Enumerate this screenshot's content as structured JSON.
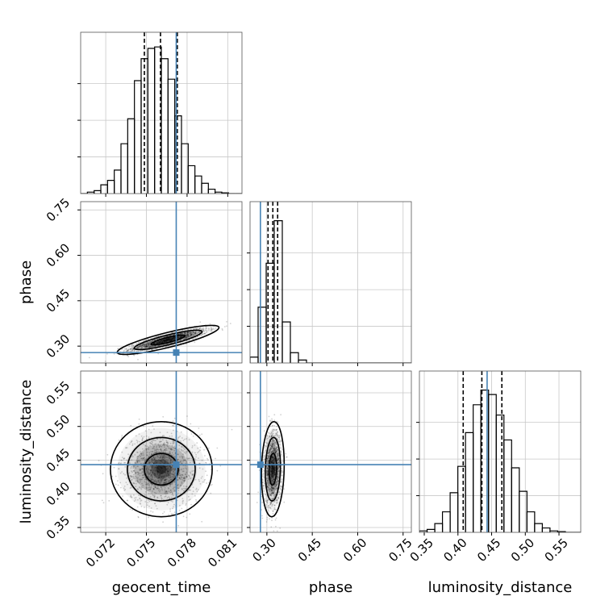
{
  "chart_data": {
    "type": "corner",
    "parameters": [
      "geocent_time",
      "phase",
      "luminosity_distance"
    ],
    "truth": {
      "geocent_time": 0.0772,
      "phase": 0.2787,
      "luminosity_distance": 0.4433
    },
    "truth_color": "#4682b4",
    "quantiles": {
      "geocent_time": [
        0.07485,
        0.07604,
        0.07728
      ],
      "phase": [
        0.3039,
        0.3197,
        0.3356
      ],
      "luminosity_distance": [
        0.4078,
        0.4355,
        0.4652
      ]
    },
    "ranges": {
      "geocent_time": [
        0.07015,
        0.08205
      ],
      "phase": [
        0.2444,
        0.7773
      ],
      "luminosity_distance": [
        0.3428,
        0.5823
      ]
    },
    "ticks": {
      "geocent_time": {
        "values": [
          0.072,
          0.075,
          0.078,
          0.081
        ],
        "labels": [
          "0.072",
          "0.075",
          "0.078",
          "0.081"
        ]
      },
      "phase": {
        "values": [
          0.3,
          0.45,
          0.6,
          0.75
        ],
        "labels": [
          "0.30",
          "0.45",
          "0.60",
          "0.75"
        ]
      },
      "luminosity_distance": {
        "values": [
          0.35,
          0.4,
          0.45,
          0.5,
          0.55
        ],
        "labels": [
          "0.35",
          "0.40",
          "0.45",
          "0.50",
          "0.55"
        ]
      }
    },
    "hist_counts": {
      "geocent_time": [
        0,
        0.01,
        0.02,
        0.06,
        0.09,
        0.16,
        0.34,
        0.51,
        0.77,
        0.92,
        0.99,
        1.0,
        0.92,
        0.78,
        0.53,
        0.34,
        0.19,
        0.12,
        0.07,
        0.03,
        0.01,
        0.005,
        0,
        0
      ],
      "phase": [
        0.04,
        0.38,
        0.68,
        0.97,
        0.28,
        0.07,
        0.02,
        0,
        0,
        0,
        0,
        0,
        0,
        0,
        0,
        0,
        0,
        0,
        0,
        0
      ],
      "luminosity_distance": [
        0.01,
        0.02,
        0.06,
        0.14,
        0.27,
        0.45,
        0.68,
        0.87,
        0.97,
        0.94,
        0.8,
        0.63,
        0.44,
        0.28,
        0.14,
        0.06,
        0.03,
        0.01,
        0.005,
        0,
        0
      ]
    },
    "hist_ylim": [
      0,
      1.1
    ],
    "joint": {
      "phase_vs_geocent_time": {
        "center": [
          0.0766,
          0.3205
        ],
        "sigma": [
          0.00125,
          0.016
        ],
        "rho": 0.85
      },
      "luminosity_distance_vs_geocent_time": {
        "center": [
          0.0761,
          0.4365
        ],
        "sigma": [
          0.00125,
          0.0235
        ],
        "rho": 0.0
      },
      "luminosity_distance_vs_phase": {
        "center": [
          0.3197,
          0.4365
        ],
        "sigma": [
          0.0125,
          0.0235
        ],
        "rho": 0.1
      }
    },
    "contour_levels": [
      0.393,
      0.865,
      0.989
    ],
    "grid": true
  }
}
